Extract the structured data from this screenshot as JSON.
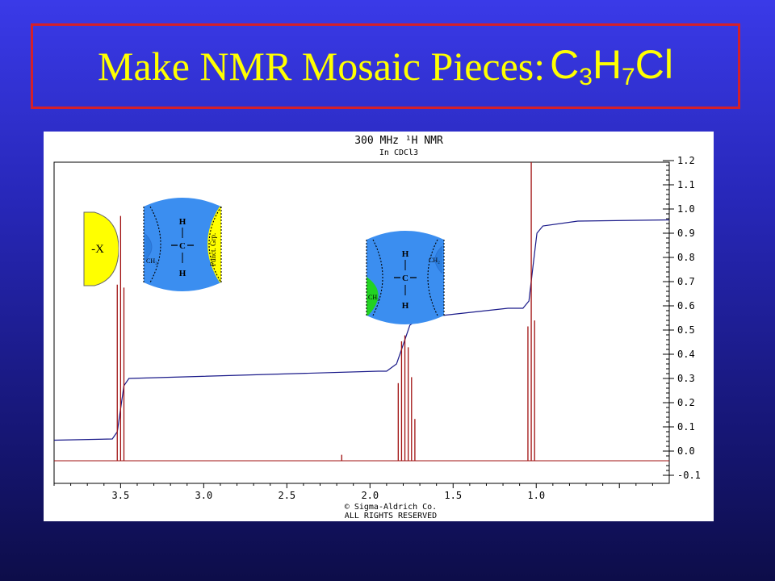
{
  "slide": {
    "title_text": "Make NMR Mosaic Pieces",
    "title_colon": ":",
    "formula": {
      "c": "C",
      "c_sub": "3",
      "h": "H",
      "h_sub": "7",
      "cl": "Cl"
    }
  },
  "spectrum": {
    "header_line1": "300 MHz ¹H NMR",
    "header_line2": "In CDCl3",
    "footer_line1": "© Sigma-Aldrich Co.",
    "footer_line2": "ALL RIGHTS RESERVED",
    "x_ticks": [
      "3.5",
      "3.0",
      "2.5",
      "2.0",
      "1.5",
      "1.0"
    ],
    "y_ticks": [
      "1.2",
      "1.1",
      "1.0",
      "0.9",
      "0.8",
      "0.7",
      "0.6",
      "0.5",
      "0.4",
      "0.3",
      "0.2",
      "0.1",
      "0.0",
      "-0.1"
    ],
    "colors": {
      "spectrum": "#a01010",
      "integral": "#1b1b8a"
    }
  },
  "chart_data": {
    "type": "line",
    "x_range": [
      3.9,
      0.2
    ],
    "y_range": [
      -0.1,
      1.2
    ],
    "peaks_ppm": [
      3.52,
      3.5,
      3.48,
      2.17,
      1.83,
      1.81,
      1.79,
      1.77,
      1.75,
      1.73,
      1.05,
      1.03,
      1.01
    ],
    "integral_steps": [
      {
        "x": 3.5,
        "level_before": 0.05,
        "level_after": 0.3
      },
      {
        "x": 1.8,
        "level_before": 0.33,
        "level_after": 0.55
      },
      {
        "x": 1.02,
        "level_before": 0.59,
        "level_after": 0.93
      }
    ]
  },
  "pieces": {
    "x_piece": {
      "label": "-X",
      "color": "#ffff00"
    },
    "piece1": {
      "h_top": "H",
      "c": "C",
      "h_bottom": "H",
      "ch2": "CH₂",
      "funct": "Funct. Grp."
    },
    "piece2": {
      "h_top": "H",
      "c": "C",
      "h_bottom": "H",
      "ch2_left": "CH₂",
      "ch2_right": "CH₂"
    }
  }
}
